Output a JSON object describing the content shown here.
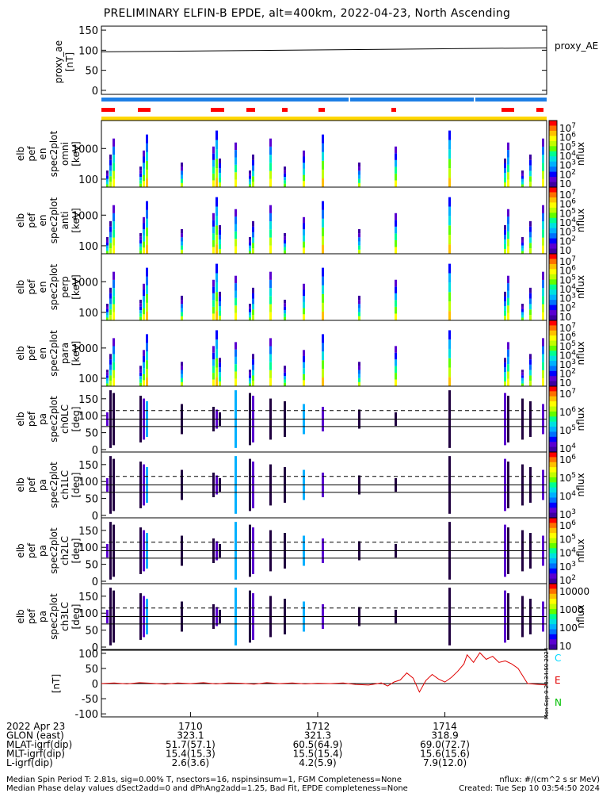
{
  "title": "PRELIMINARY ELFIN-B EPDE, alt=400km, 2022-04-23, North Ascending",
  "chart_data": [
    {
      "panel": "proxy_ae",
      "type": "line",
      "ylabel": "proxy_ae\n[nT]",
      "legend": "proxy_AE",
      "yticks": [
        0,
        50,
        100,
        150
      ],
      "ylim": [
        -10,
        160
      ],
      "x": [
        1708.6,
        1715.6
      ],
      "values": [
        96,
        106
      ]
    },
    {
      "panel": "spec_omni",
      "type": "heatmap",
      "ylabel": [
        "elb",
        "pef",
        "en",
        "spec2plot",
        "omni",
        "[keV]"
      ],
      "yticks": [
        "1000",
        "100"
      ],
      "colorbar": {
        "label": "nflux",
        "ticks": [
          "10^7",
          "10^6",
          "10^5",
          "10^4",
          "10^3",
          "10^2",
          "10"
        ]
      }
    },
    {
      "panel": "spec_anti",
      "type": "heatmap",
      "ylabel": [
        "elb",
        "pef",
        "en",
        "spec2plot",
        "anti",
        "[keV]"
      ],
      "yticks": [
        "1000",
        "100"
      ],
      "colorbar": {
        "label": "nflux",
        "ticks": [
          "10^7",
          "10^6",
          "10^5",
          "10^4",
          "10^3",
          "10^2",
          "10"
        ]
      }
    },
    {
      "panel": "spec_perp",
      "type": "heatmap",
      "ylabel": [
        "elb",
        "pef",
        "en",
        "spec2plot",
        "perp",
        "[keV]"
      ],
      "yticks": [
        "1000",
        "100"
      ],
      "colorbar": {
        "label": "nflux",
        "ticks": [
          "10^7",
          "10^6",
          "10^5",
          "10^4",
          "10^3",
          "10^2",
          "10"
        ]
      }
    },
    {
      "panel": "spec_para",
      "type": "heatmap",
      "ylabel": [
        "elb",
        "pef",
        "en",
        "spec2plot",
        "para",
        "[keV]"
      ],
      "yticks": [
        "1000",
        "100"
      ],
      "colorbar": {
        "label": "nflux",
        "ticks": [
          "10^7",
          "10^6",
          "10^5",
          "10^4",
          "10^3",
          "10^2",
          "10"
        ]
      }
    },
    {
      "panel": "pa_ch0",
      "type": "heatmap",
      "ylabel": [
        "elb",
        "pef",
        "pa",
        "spec2plot",
        "ch0LC",
        "[deg]"
      ],
      "yticks": [
        "150",
        "100",
        "50",
        "0"
      ],
      "colorbar": {
        "label": "nflux",
        "ticks": [
          "10^7",
          "10^6",
          "10^5",
          "10^4"
        ]
      }
    },
    {
      "panel": "pa_ch1",
      "type": "heatmap",
      "ylabel": [
        "elb",
        "pef",
        "pa",
        "spec2plot",
        "ch1LC",
        "[deg]"
      ],
      "yticks": [
        "150",
        "100",
        "50",
        "0"
      ],
      "colorbar": {
        "label": "nflux",
        "ticks": [
          "10^6",
          "10^5",
          "10^4",
          "10^3"
        ]
      }
    },
    {
      "panel": "pa_ch2",
      "type": "heatmap",
      "ylabel": [
        "elb",
        "pef",
        "pa",
        "spec2plot",
        "ch2LC",
        "[deg]"
      ],
      "yticks": [
        "150",
        "100",
        "50",
        "0"
      ],
      "colorbar": {
        "label": "nflux",
        "ticks": [
          "10^6",
          "10^5",
          "10^4",
          "10^3",
          "10^2"
        ]
      }
    },
    {
      "panel": "pa_ch3",
      "type": "heatmap",
      "ylabel": [
        "elb",
        "pef",
        "pa",
        "spec2plot",
        "ch3LC",
        "[deg]"
      ],
      "yticks": [
        "150",
        "100",
        "50",
        "0"
      ],
      "colorbar": {
        "label": "nflux",
        "ticks": [
          "10000",
          "1000",
          "100",
          "10"
        ]
      }
    },
    {
      "panel": "mag",
      "type": "line",
      "ylabel": "[nT]",
      "yticks": [
        "100",
        "50",
        "0",
        "-50",
        "-100"
      ],
      "ylim": [
        -110,
        110
      ],
      "legend": [
        "C",
        "E",
        "N"
      ],
      "series": [
        {
          "name": "E",
          "x": [
            1708.6,
            1708.8,
            1709.0,
            1709.2,
            1709.4,
            1709.6,
            1709.8,
            1710.0,
            1710.2,
            1710.4,
            1710.6,
            1710.8,
            1711.0,
            1711.2,
            1711.4,
            1711.6,
            1711.8,
            1712.0,
            1712.2,
            1712.4,
            1712.6,
            1712.8,
            1713.0,
            1713.1,
            1713.2,
            1713.3,
            1713.4,
            1713.5,
            1713.6,
            1713.7,
            1713.8,
            1713.9,
            1714.0,
            1714.1,
            1714.2,
            1714.3,
            1714.35,
            1714.45,
            1714.55,
            1714.65,
            1714.75,
            1714.85,
            1714.95,
            1715.05,
            1715.15,
            1715.3,
            1715.6
          ],
          "values": [
            0,
            2,
            -1,
            3,
            1,
            -2,
            2,
            0,
            3,
            -1,
            2,
            1,
            -2,
            3,
            0,
            2,
            -1,
            1,
            0,
            2,
            -3,
            -5,
            2,
            -8,
            5,
            12,
            35,
            18,
            -28,
            10,
            30,
            15,
            5,
            20,
            40,
            65,
            95,
            70,
            102,
            80,
            90,
            70,
            75,
            65,
            50,
            0,
            -5
          ]
        }
      ]
    }
  ],
  "colors": {
    "band_blue": "#1e7fe6",
    "band_red": "#ff0000",
    "band_yellow": "#ffd700",
    "line_red": "#e00000",
    "cb_C": "#00d8ff",
    "cb_E": "#e00000",
    "cb_N": "#00c000"
  },
  "xaxis": {
    "row_labels": [
      "2022 Apr 23",
      "GLON (east)",
      "MLAT-igrf(dip)",
      "MLT-igrf(dip)",
      "L-igrf(dip)"
    ],
    "ticks": [
      {
        "x": 1710,
        "cols": [
          "1710",
          "323.1",
          "51.7(57.1)",
          "15.4(15.3)",
          "2.6(3.6)"
        ]
      },
      {
        "x": 1712,
        "cols": [
          "1712",
          "321.3",
          "60.5(64.9)",
          "15.5(15.4)",
          "4.2(5.9)"
        ]
      },
      {
        "x": 1714,
        "cols": [
          "1714",
          "318.9",
          "69.0(72.7)",
          "15.6(15.6)",
          "7.9(12.0)"
        ]
      }
    ]
  },
  "footer": {
    "left1": "Median Spin Period T: 2.81s, sig=0.00% T, nsectors=16, nspinsinsum=1, FGM Completeness=None",
    "left2": "Median Phase delay values dSect2add=0 and dPhAng2add=1.25, Bad Fit, EPDE completeness=None",
    "right1": "nflux: #/(cm^2 s sr MeV)",
    "right2": "Created: Tue Sep 10 03:54:50 2024",
    "sidebar": "Mon Sep  9 20:34:50 2024"
  }
}
